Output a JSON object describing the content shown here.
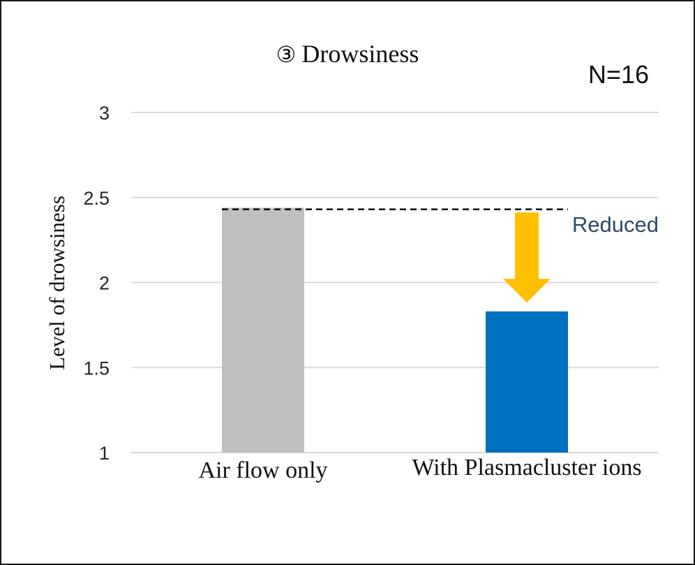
{
  "chart_data": {
    "type": "bar",
    "title_symbol": "③",
    "title": "Drowsiness",
    "annotation_n": "N=16",
    "ylabel": "Level of drowsiness",
    "xlabel": "",
    "ylim": [
      1,
      3
    ],
    "yticks": [
      "1",
      "1.5",
      "2",
      "2.5",
      "3"
    ],
    "grid": true,
    "categories": [
      "Air flow only",
      "With Plasmacluster ions"
    ],
    "values": [
      2.44,
      1.83
    ],
    "colors": [
      "#bfbfbf",
      "#0070c0"
    ],
    "reference_line": {
      "value": 2.43,
      "style": "dashed",
      "color": "#000000"
    },
    "arrow": {
      "from": 2.42,
      "to": 1.89,
      "color": "#ffc000"
    },
    "annotation_text": "Reduced",
    "annotation_color": "#2e4a6b"
  }
}
